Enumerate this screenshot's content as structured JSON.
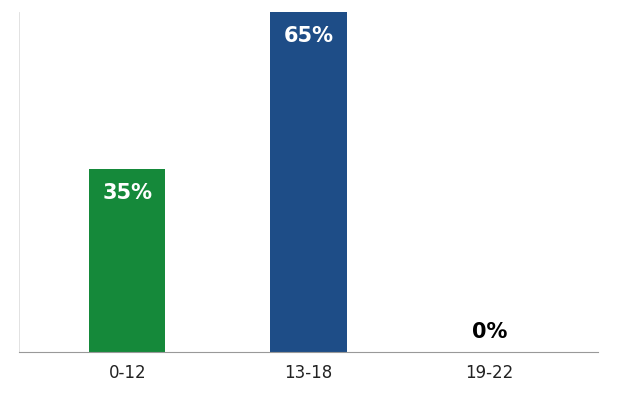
{
  "chart_data": {
    "type": "bar",
    "categories": [
      "0-12",
      "13-18",
      "19-22"
    ],
    "values": [
      35,
      65,
      0
    ],
    "value_labels": [
      "35%",
      "65%",
      "0%"
    ],
    "colors": [
      "#15893a",
      "#1e4d87",
      "#1e4d87"
    ],
    "data_labels": true,
    "tick_labels": "x",
    "grid": false,
    "ylim": [
      0,
      65
    ]
  }
}
